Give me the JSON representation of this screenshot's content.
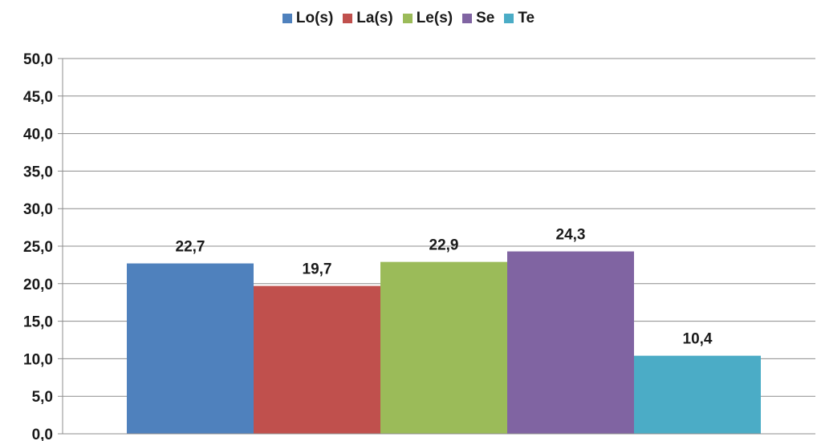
{
  "chart_data": {
    "type": "bar",
    "categories": [
      "Lo(s)",
      "La(s)",
      "Le(s)",
      "Se",
      "Te"
    ],
    "values": [
      22.7,
      19.7,
      22.9,
      24.3,
      10.4
    ],
    "value_labels": [
      "22,7",
      "19,7",
      "22,9",
      "24,3",
      "10,4"
    ],
    "colors": [
      "#4f81bd",
      "#c0504d",
      "#9bbb59",
      "#8064a2",
      "#4bacc6"
    ],
    "title": "",
    "xlabel": "",
    "ylabel": "",
    "ylim": [
      0,
      50
    ],
    "yticks": [
      0,
      5,
      10,
      15,
      20,
      25,
      30,
      35,
      40,
      45,
      50
    ],
    "ytick_labels": [
      "0,0",
      "5,0",
      "10,0",
      "15,0",
      "20,0",
      "25,0",
      "30,0",
      "35,0",
      "40,0",
      "45,0",
      "50,0"
    ],
    "grid": true,
    "legend_position": "top-center"
  }
}
